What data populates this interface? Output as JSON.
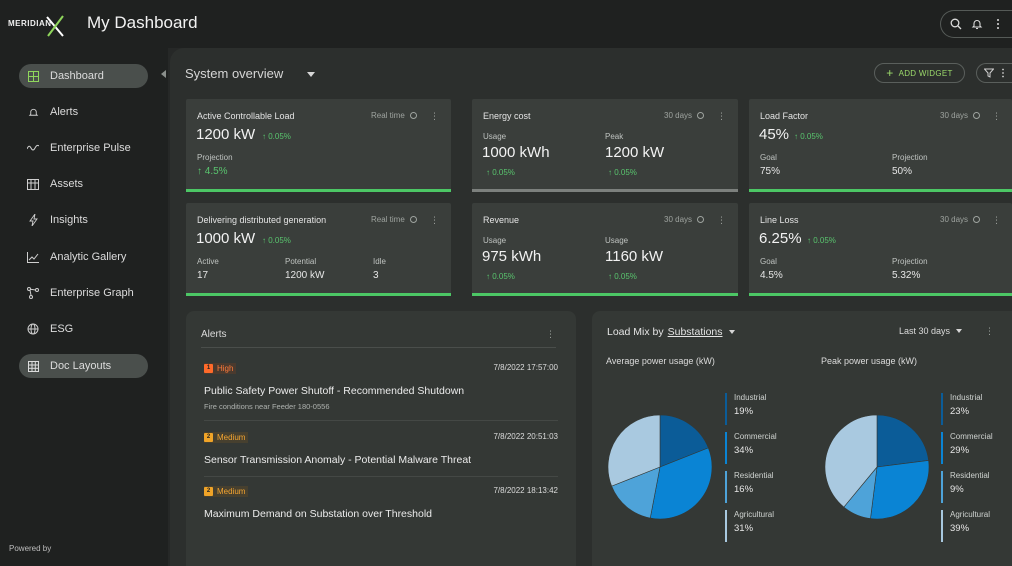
{
  "header": {
    "logo_text": "MERIDIAN",
    "title": "My Dashboard",
    "icons": [
      "search-icon",
      "bell-icon",
      "more-vertical-icon"
    ]
  },
  "sidebar": {
    "items": [
      {
        "label": "Dashboard",
        "icon": "grid-icon",
        "active": true
      },
      {
        "label": "Alerts",
        "icon": "bell-icon"
      },
      {
        "label": "Enterprise Pulse",
        "icon": "pulse-icon"
      },
      {
        "label": "Assets",
        "icon": "assets-icon"
      },
      {
        "label": "Insights",
        "icon": "bolt-icon"
      },
      {
        "label": "Analytic Gallery",
        "icon": "line-chart-icon"
      },
      {
        "label": "Enterprise Graph",
        "icon": "graph-icon"
      },
      {
        "label": "ESG",
        "icon": "globe-icon"
      },
      {
        "label": "Doc Layouts",
        "icon": "table-icon",
        "active": true
      }
    ],
    "footer": "Powered by"
  },
  "toolbar": {
    "title": "System overview",
    "add_widget": "ADD WIDGET"
  },
  "cards": [
    {
      "title": "Active Controllable Load",
      "meta": "Real time",
      "value": "1200 kW",
      "delta": "↑ 0.05%",
      "sub_label": "Projection",
      "sub_value": "↑ 4.5%"
    },
    {
      "title": "Energy cost",
      "meta": "30 days",
      "c1_label": "Usage",
      "c1_value": "1000 kWh",
      "c1_delta": "↑ 0.05%",
      "c2_label": "Peak",
      "c2_value": "1200 kW",
      "c2_delta": "↑ 0.05%"
    },
    {
      "title": "Load Factor",
      "meta": "30 days",
      "value": "45%",
      "delta": "↑ 0.05%",
      "c1_label": "Goal",
      "c1_value": "75%",
      "c2_label": "Projection",
      "c2_value": "50%"
    },
    {
      "title": "Delivering distributed generation",
      "meta": "Real time",
      "value": "1000 kW",
      "delta": "↑ 0.05%",
      "c1_label": "Active",
      "c1_value": "17",
      "c2_label": "Potential",
      "c2_value": "1200 kW",
      "c3_label": "Idle",
      "c3_value": "3"
    },
    {
      "title": "Revenue",
      "meta": "30 days",
      "c1_label": "Usage",
      "c1_value": "975 kWh",
      "c1_delta": "↑ 0.05%",
      "c2_label": "Usage",
      "c2_value": "1160 kW",
      "c2_delta": "↑ 0.05%"
    },
    {
      "title": "Line Loss",
      "meta": "30 days",
      "value": "6.25%",
      "delta": "↑ 0.05%",
      "c1_label": "Goal",
      "c1_value": "4.5%",
      "c2_label": "Projection",
      "c2_value": "5.32%"
    }
  ],
  "alerts": {
    "title": "Alerts",
    "items": [
      {
        "severity": "High",
        "badge_num": "1",
        "time": "7/8/2022 17:57:00",
        "headline": "Public Safety Power Shutoff - Recommended Shutdown",
        "sub": "Fire conditions near Feeder 180-0556"
      },
      {
        "severity": "Medium",
        "badge_num": "2",
        "time": "7/8/2022 20:51:03",
        "headline": "Sensor Transmission Anomaly - Potential Malware Threat",
        "sub": ""
      },
      {
        "severity": "Medium",
        "badge_num": "2",
        "time": "7/8/2022 18:13:42",
        "headline": "Maximum Demand on Substation over Threshold",
        "sub": ""
      }
    ]
  },
  "load_mix": {
    "title_prefix": "Load Mix by",
    "title_link": "Substations",
    "range": "Last 30 days",
    "charts": [
      {
        "subtitle": "Average power usage (kW)",
        "legend": [
          {
            "name": "Industrial",
            "value": "19%",
            "pct": 19,
            "color": "#0b5c98"
          },
          {
            "name": "Commercial",
            "value": "34%",
            "pct": 34,
            "color": "#0a84d4"
          },
          {
            "name": "Residential",
            "value": "16%",
            "pct": 16,
            "color": "#4ea3d9"
          },
          {
            "name": "Agricultural",
            "value": "31%",
            "pct": 31,
            "color": "#a9c9e0"
          }
        ]
      },
      {
        "subtitle": "Peak power usage (kW)",
        "legend": [
          {
            "name": "Industrial",
            "value": "23%",
            "pct": 23,
            "color": "#0b5c98"
          },
          {
            "name": "Commercial",
            "value": "29%",
            "pct": 29,
            "color": "#0a84d4"
          },
          {
            "name": "Residential",
            "value": "9%",
            "pct": 9,
            "color": "#4ea3d9"
          },
          {
            "name": "Agricultural",
            "value": "39%",
            "pct": 39,
            "color": "#a9c9e0"
          }
        ]
      }
    ]
  }
}
